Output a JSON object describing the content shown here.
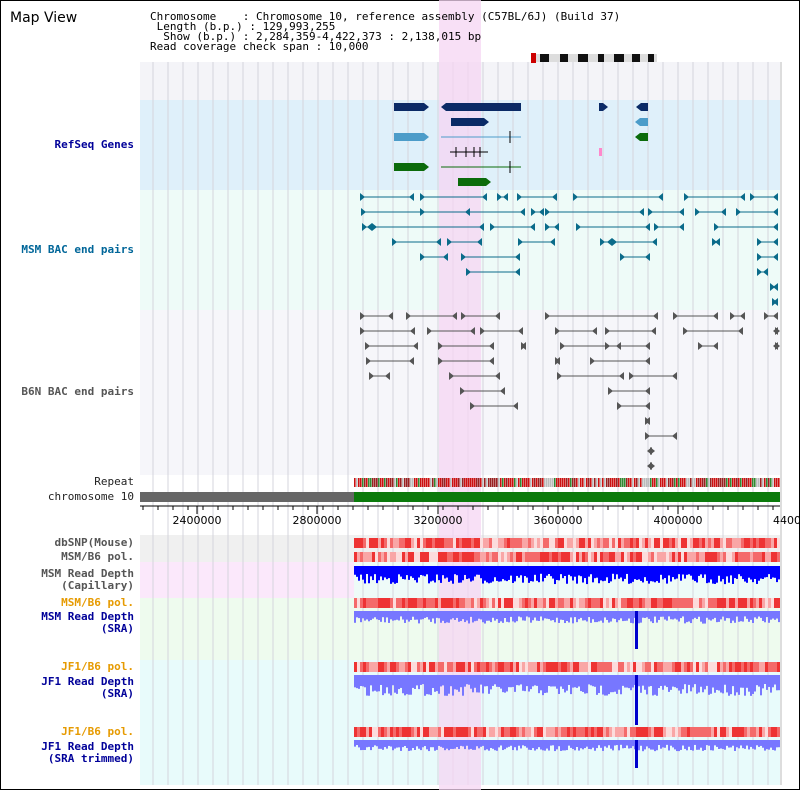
{
  "header": {
    "title": "Map View",
    "chromosome_line": "Chromosome    : Chromosome 10, reference assembly (C57BL/6J) (Build 37)",
    "length_line": " Length (b.p.) : 129,993,255",
    "show_line": "  Show (b.p.) : 2,284,359-4,422,373 : 2,138,015 bp",
    "coverage_line": "Read coverage check span : 10,000"
  },
  "tracks": {
    "refseq": "RefSeq Genes",
    "msm_bac": "MSM BAC end pairs",
    "b6n_bac": "B6N BAC end pairs",
    "repeat": "Repeat",
    "chromosome": "chromosome 10",
    "dbsnp": "dbSNP(Mouse)",
    "msm_pol_1": "MSM/B6 pol.",
    "msm_depth_cap": "MSM Read Depth\n(Capillary)",
    "msm_pol_2": "MSM/B6 pol.",
    "msm_depth_sra": "MSM Read Depth\n(SRA)",
    "jf1_pol_1": "JF1/B6 pol.",
    "jf1_depth_sra": "JF1 Read Depth\n(SRA)",
    "jf1_pol_2": "JF1/B6 pol.",
    "jf1_depth_trim": "JF1 Read Depth\n(SRA trimmed)"
  },
  "axis": {
    "ticks": [
      "2400000",
      "2800000",
      "3200000",
      "3600000",
      "4000000",
      "4400"
    ]
  },
  "colors": {
    "refseq_bg": "#dff0fa",
    "msm_bg": "#eefbf8",
    "highlight": "#f5d6f3",
    "gene_dark": "#0a2a66",
    "gene_light": "#4c9cc9",
    "gene_green": "#0b6b0b",
    "bac_teal": "#0a6b8a",
    "bac_gray": "#555555",
    "depth_blue": "#0000ff",
    "depth_sra": "#7777ff",
    "chrom_green": "#0b7a0b",
    "chrom_gray": "#666666"
  }
}
